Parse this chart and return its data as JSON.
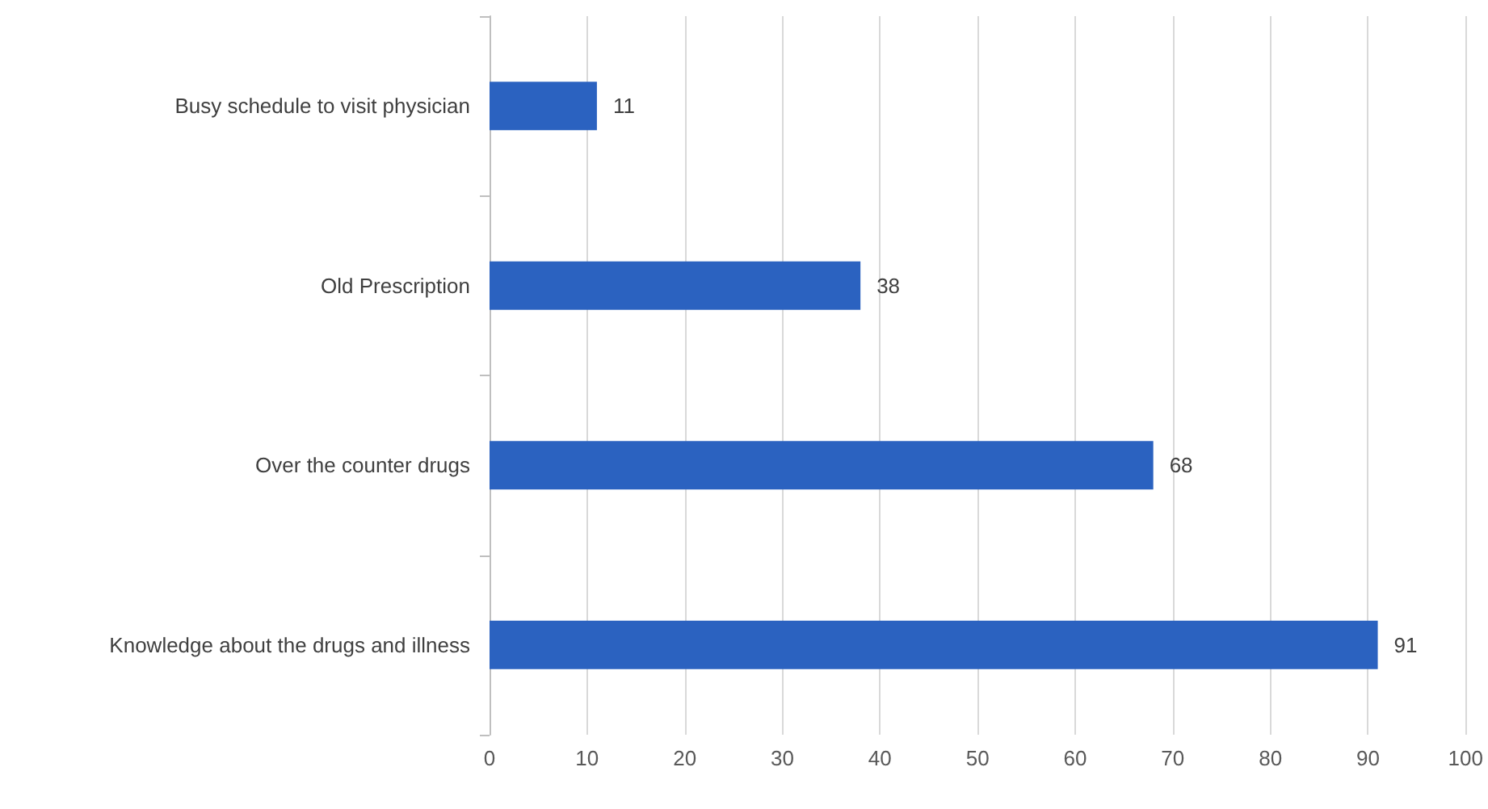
{
  "chart_data": {
    "type": "bar",
    "orientation": "horizontal",
    "categories": [
      "Busy schedule to visit physician",
      "Old Prescription",
      "Over the counter drugs",
      "Knowledge about the drugs and illness"
    ],
    "values": [
      11,
      38,
      68,
      91
    ],
    "color": "#2b62c0",
    "xlim": [
      0,
      100
    ],
    "xticks": [
      0,
      10,
      20,
      30,
      40,
      50,
      60,
      70,
      80,
      90,
      100
    ],
    "grid": "x",
    "data_labels": true
  }
}
